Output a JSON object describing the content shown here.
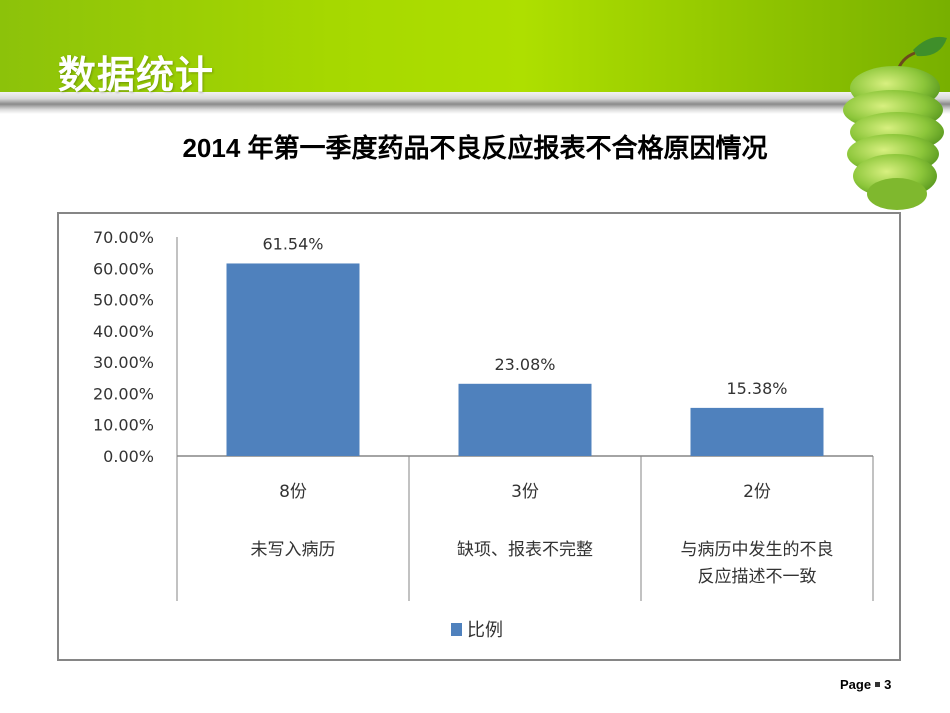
{
  "slide": {
    "title": "数据统计",
    "subtitle": "2014 年第一季度药品不良反应报表不合格原因情况",
    "page_label": "Page",
    "page_number": "3"
  },
  "colors": {
    "bar": "#4f81bd",
    "header_green": "#a6d800"
  },
  "chart_data": {
    "type": "bar",
    "categories": [
      {
        "count": "8份",
        "label": [
          "未写入病历"
        ]
      },
      {
        "count": "3份",
        "label": [
          "缺项、报表不完整"
        ]
      },
      {
        "count": "2份",
        "label": [
          "与病历中发生的不良",
          "反应描述不一致"
        ]
      }
    ],
    "series": [
      {
        "name": "比例",
        "values": [
          61.54,
          23.08,
          15.38
        ]
      }
    ],
    "data_labels": [
      "61.54%",
      "23.08%",
      "15.38%"
    ],
    "yticks": [
      "0.00%",
      "10.00%",
      "20.00%",
      "30.00%",
      "40.00%",
      "50.00%",
      "60.00%",
      "70.00%"
    ],
    "ylim": [
      0,
      70
    ],
    "grid": false,
    "legend": "bottom"
  }
}
